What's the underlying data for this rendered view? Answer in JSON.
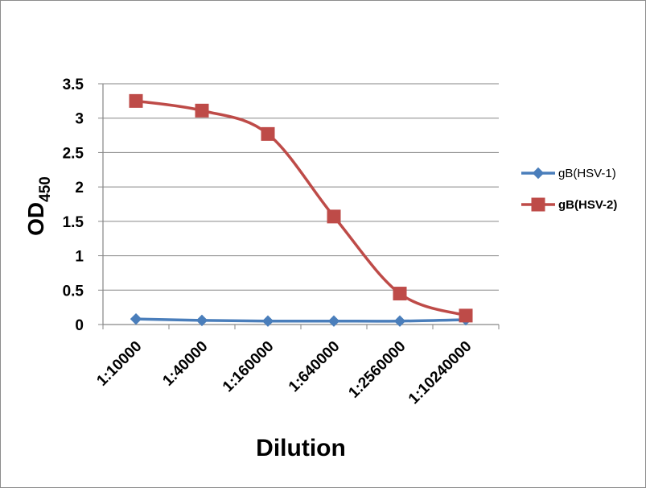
{
  "chart_data": {
    "type": "line",
    "title": "",
    "xlabel": "Dilution",
    "ylabel_main": "OD",
    "ylabel_sub": "450",
    "categories": [
      "1:10000",
      "1:40000",
      "1:160000",
      "1:640000",
      "1:2560000",
      "1:10240000"
    ],
    "ylim": [
      0,
      3.5
    ],
    "yticks": [
      "0",
      "0.5",
      "1",
      "1.5",
      "2",
      "2.5",
      "3",
      "3.5"
    ],
    "ytick_values": [
      0,
      0.5,
      1,
      1.5,
      2,
      2.5,
      3,
      3.5
    ],
    "grid": true,
    "legend_position": "right",
    "series": [
      {
        "name": "gB(HSV-1)",
        "values": [
          0.08,
          0.06,
          0.05,
          0.05,
          0.05,
          0.07
        ],
        "color": "#4a7ebb",
        "marker": "diamond",
        "bold_label": false
      },
      {
        "name": "gB(HSV-2)",
        "values": [
          3.25,
          3.11,
          2.77,
          1.57,
          0.45,
          0.13
        ],
        "color": "#be4b48",
        "marker": "square",
        "bold_label": true
      }
    ]
  }
}
